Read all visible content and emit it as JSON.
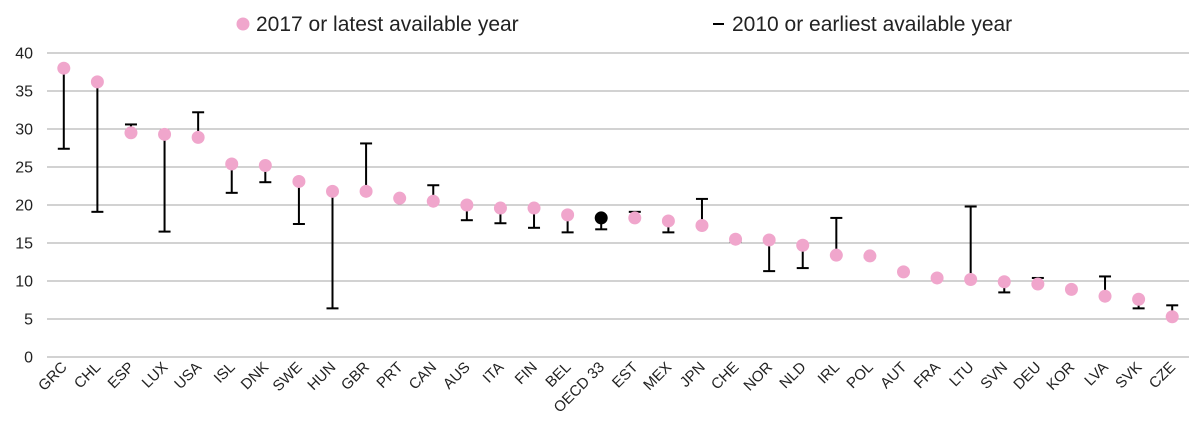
{
  "chart_data": {
    "type": "scatter",
    "title": "",
    "xlabel": "",
    "ylabel": "",
    "ylim": [
      0,
      40
    ],
    "yticks": [
      0,
      5,
      10,
      15,
      20,
      25,
      30,
      35,
      40
    ],
    "grid": "horizontal",
    "legend_position": "top",
    "colors": {
      "latest": "#f0a6cc",
      "highlight": "#000000",
      "earliest": "#000000"
    },
    "series": [
      {
        "name": "2017 or latest available year",
        "marker": "circle"
      },
      {
        "name": "2010 or earliest available year",
        "marker": "dash"
      }
    ],
    "categories": [
      "GRC",
      "CHL",
      "ESP",
      "LUX",
      "USA",
      "ISL",
      "DNK",
      "SWE",
      "HUN",
      "GBR",
      "PRT",
      "CAN",
      "AUS",
      "ITA",
      "FIN",
      "BEL",
      "OECD 33",
      "EST",
      "MEX",
      "JPN",
      "CHE",
      "NOR",
      "NLD",
      "IRL",
      "POL",
      "AUT",
      "FRA",
      "LTU",
      "SVN",
      "DEU",
      "KOR",
      "LVA",
      "SVK",
      "CZE"
    ],
    "latest": [
      38.0,
      36.2,
      29.5,
      29.3,
      28.9,
      25.4,
      25.2,
      23.1,
      21.8,
      21.8,
      20.9,
      20.5,
      20.0,
      19.6,
      19.6,
      18.7,
      18.3,
      18.3,
      17.9,
      17.3,
      15.5,
      15.4,
      14.7,
      13.4,
      13.3,
      11.2,
      10.4,
      10.2,
      9.9,
      9.6,
      8.9,
      8.0,
      7.6,
      5.3
    ],
    "earliest": [
      27.4,
      19.1,
      30.6,
      16.5,
      32.2,
      21.6,
      23.0,
      17.5,
      6.4,
      28.1,
      20.9,
      22.6,
      18.0,
      17.6,
      17.0,
      16.4,
      16.8,
      19.1,
      16.4,
      20.8,
      15.2,
      11.3,
      11.7,
      18.3,
      13.1,
      11.1,
      10.4,
      19.8,
      8.5,
      10.4,
      null,
      10.6,
      6.4,
      6.8
    ],
    "highlight_index": 16
  }
}
